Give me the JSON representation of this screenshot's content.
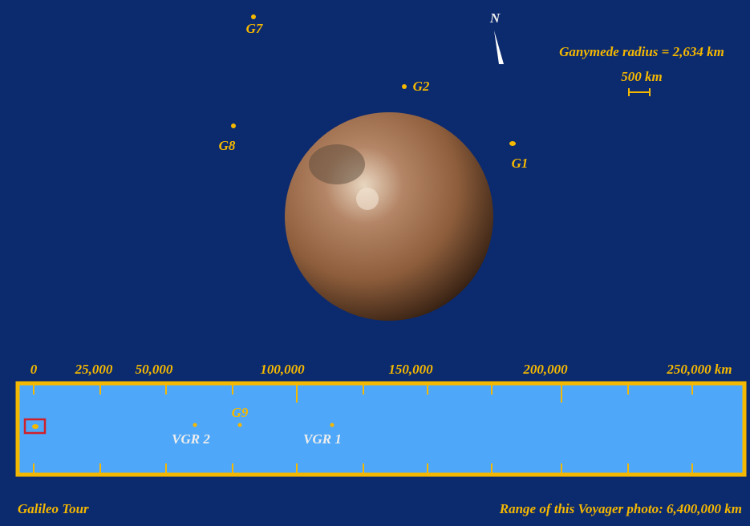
{
  "header": {
    "north": "N",
    "radius_note": "Ganymede radius = 2,634 km",
    "scale_bar": "500 km"
  },
  "flybys": [
    "G7",
    "G2",
    "G8",
    "G1"
  ],
  "range_scale": {
    "labels": [
      "0",
      "25,000",
      "50,000",
      "100,000",
      "150,000",
      "200,000",
      "250,000 km"
    ],
    "markers": [
      "G9",
      "VGR 2",
      "VGR 1"
    ]
  },
  "footer": {
    "left": "Galileo Tour",
    "right": "Range of this Voyager photo: 6,400,000 km"
  }
}
